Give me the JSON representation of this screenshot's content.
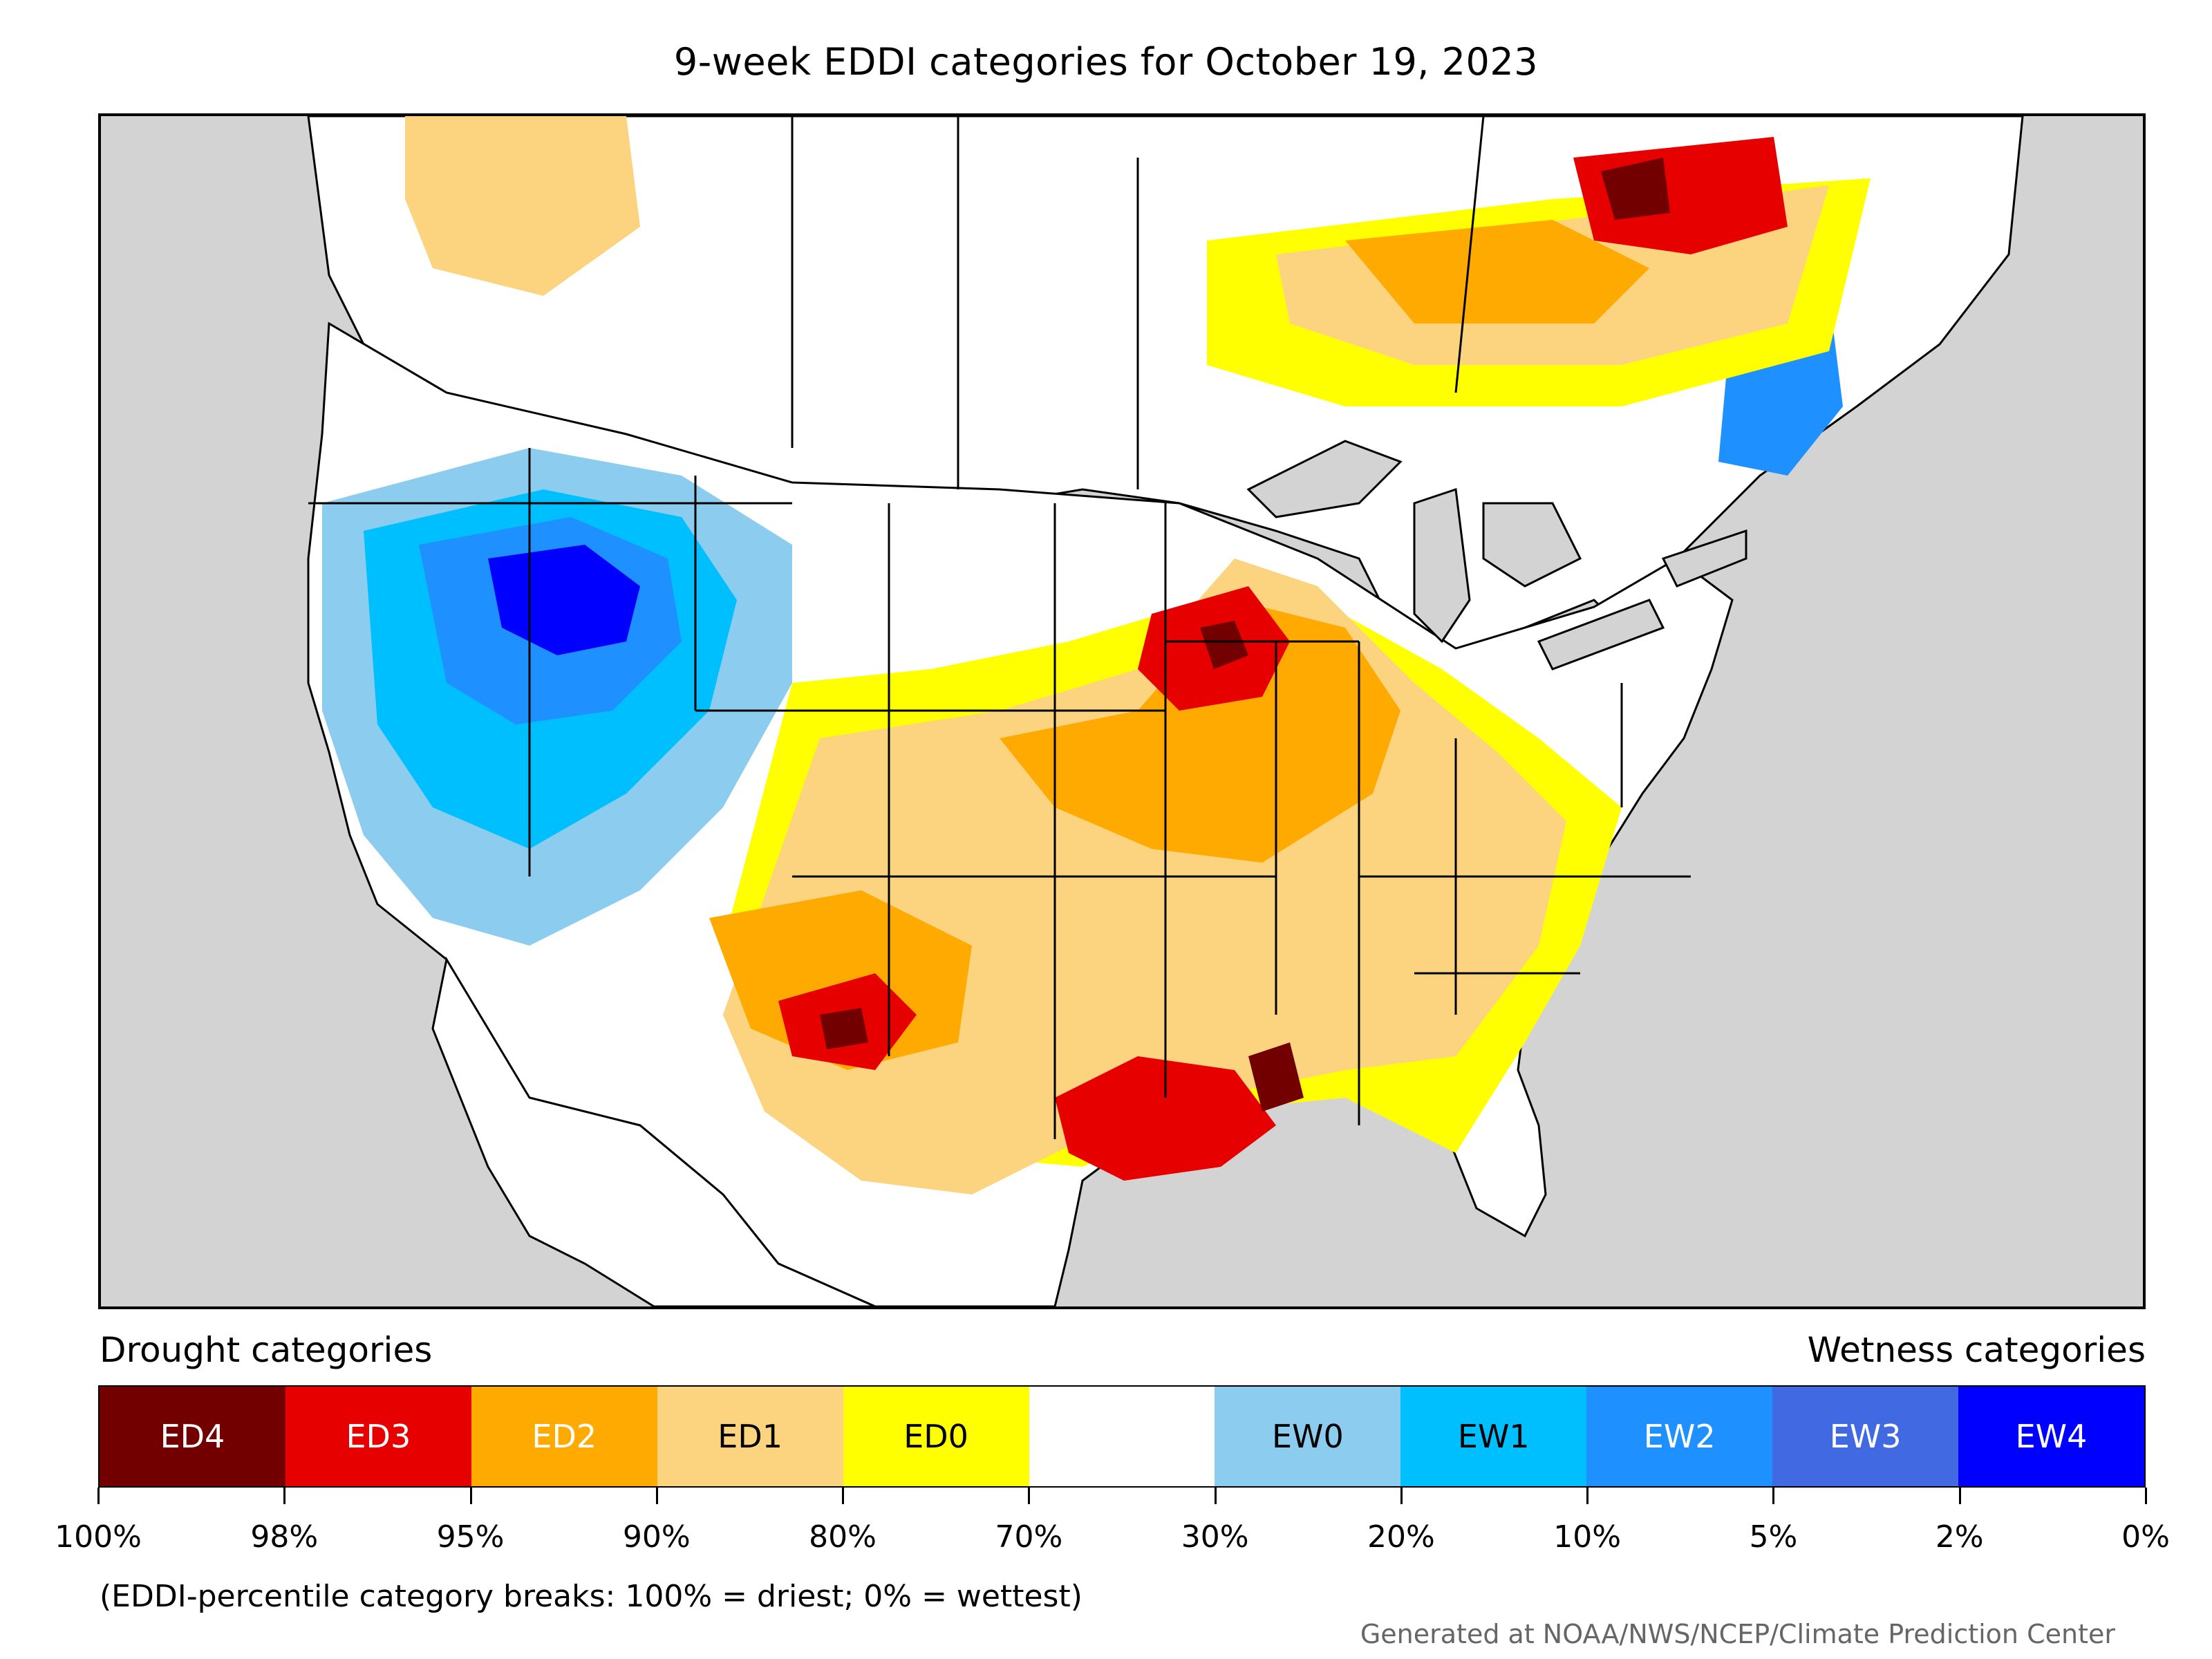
{
  "title": "9-week EDDI categories for October 19, 2023",
  "legend": {
    "drought_heading": "Drought categories",
    "wetness_heading": "Wetness categories",
    "categories": [
      {
        "label": "ED4",
        "color": "#730000",
        "text_color": "#ffffff"
      },
      {
        "label": "ED3",
        "color": "#e60000",
        "text_color": "#ffffff"
      },
      {
        "label": "ED2",
        "color": "#ffaa00",
        "text_color": "#ffffff"
      },
      {
        "label": "ED1",
        "color": "#fcd37f",
        "text_color": "#000000"
      },
      {
        "label": "ED0",
        "color": "#ffff00",
        "text_color": "#000000"
      },
      {
        "label": "",
        "color": "#ffffff",
        "text_color": "#000000"
      },
      {
        "label": "EW0",
        "color": "#8ccdef",
        "text_color": "#000000"
      },
      {
        "label": "EW1",
        "color": "#00bfff",
        "text_color": "#000000"
      },
      {
        "label": "EW2",
        "color": "#1e90ff",
        "text_color": "#ffffff"
      },
      {
        "label": "EW3",
        "color": "#4169e1",
        "text_color": "#ffffff"
      },
      {
        "label": "EW4",
        "color": "#0000ff",
        "text_color": "#ffffff"
      }
    ],
    "tick_labels": [
      "100%",
      "98%",
      "95%",
      "90%",
      "80%",
      "70%",
      "30%",
      "20%",
      "10%",
      "5%",
      "2%",
      "0%"
    ]
  },
  "footnote": "(EDDI-percentile category breaks: 100% = driest; 0% = wettest)",
  "credit": "Generated at NOAA/NWS/NCEP/Climate Prediction Center",
  "map": {
    "ocean_color": "#d3d3d3",
    "land_color": "#ffffff",
    "border_color": "#000000"
  }
}
